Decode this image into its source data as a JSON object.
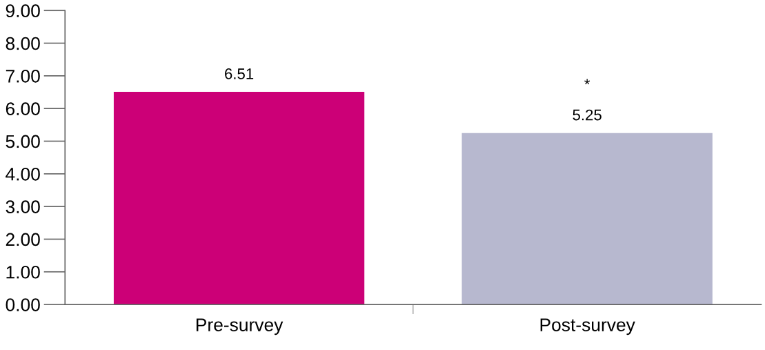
{
  "chart_data": {
    "type": "bar",
    "categories": [
      "Pre-survey",
      "Post-survey"
    ],
    "values": [
      6.51,
      5.25
    ],
    "colors": [
      "#cc0077",
      "#b7b8cf"
    ],
    "ylim": [
      0,
      9
    ],
    "yticks": [
      {
        "value": 0,
        "label": "0.00"
      },
      {
        "value": 1,
        "label": "1.00"
      },
      {
        "value": 2,
        "label": "2.00"
      },
      {
        "value": 3,
        "label": "3.00"
      },
      {
        "value": 4,
        "label": "4.00"
      },
      {
        "value": 5,
        "label": "5.00"
      },
      {
        "value": 6,
        "label": "6.00"
      },
      {
        "value": 7,
        "label": "7.00"
      },
      {
        "value": 8,
        "label": "8.00"
      },
      {
        "value": 9,
        "label": "9.00"
      }
    ],
    "data_labels": true,
    "annotations": [
      "*"
    ],
    "grid": false,
    "legend": false
  }
}
